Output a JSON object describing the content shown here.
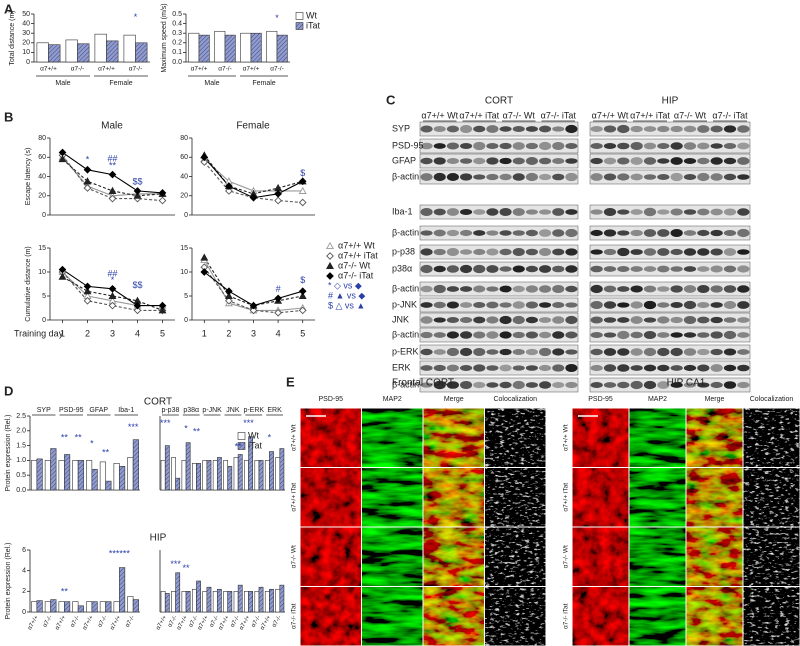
{
  "panel_labels": [
    "A",
    "B",
    "C",
    "D",
    "E"
  ],
  "chart_data": [
    {
      "type": "bar",
      "ylabel": "Total distance (m)",
      "categories": [
        "α7+/+",
        "α7-/-",
        "α7+/+",
        "α7-/-"
      ],
      "groups": [
        "Male",
        "Female"
      ],
      "group_position": "bottom",
      "series": [
        {
          "name": "Wt",
          "color": "#ffffff",
          "values": [
            20,
            23,
            29,
            28
          ]
        },
        {
          "name": "iTat",
          "color": "#8f9bd6",
          "hatch": true,
          "values": [
            18,
            19,
            22,
            20
          ]
        }
      ],
      "ylim": [
        0,
        50
      ],
      "yticks": [
        0,
        10,
        20,
        30,
        40,
        50
      ],
      "annotations": [
        "*"
      ],
      "annotation_color": "#2a3fa8"
    },
    {
      "type": "bar",
      "ylabel": "Maximum speed (m/s)",
      "categories": [
        "α7+/+",
        "α7-/-",
        "α7+/+",
        "α7-/-"
      ],
      "groups": [
        "Male",
        "Female"
      ],
      "group_position": "bottom",
      "series": [
        {
          "name": "Wt",
          "color": "#ffffff",
          "values": [
            0.3,
            0.32,
            0.3,
            0.32
          ]
        },
        {
          "name": "iTat",
          "color": "#8f9bd6",
          "hatch": true,
          "values": [
            0.28,
            0.28,
            0.3,
            0.28
          ]
        }
      ],
      "ylim": [
        0,
        0.5
      ],
      "yticks": [
        {
          "value": 0,
          "label": "0.0"
        },
        0.1,
        0.2,
        0.3,
        0.4,
        0.5
      ],
      "legend": true,
      "annotations": [
        "*"
      ],
      "annotation_color": "#2a3fa8"
    },
    {
      "type": "line",
      "title": "Male",
      "ylabel": "Escape latency (s)",
      "x": [
        1,
        2,
        3,
        4,
        5
      ],
      "xlim": [
        0.5,
        5.5
      ],
      "ylim": [
        0,
        80
      ],
      "yticks": [
        0,
        20,
        40,
        60,
        80
      ],
      "series": [
        {
          "name": "α7+/+ Wt",
          "color": "#9a9a9a",
          "marker": "triangle-open",
          "values": [
            60,
            30,
            20,
            22,
            22
          ]
        },
        {
          "name": "α7+/+ iTat",
          "color": "#555555",
          "marker": "diamond-open",
          "dash": true,
          "values": [
            62,
            28,
            17,
            17,
            15
          ]
        },
        {
          "name": "α7-/- Wt",
          "color": "#222222",
          "marker": "triangle",
          "dash": true,
          "values": [
            58,
            35,
            25,
            20,
            22
          ]
        },
        {
          "name": "α7-/- iTat",
          "color": "#000000",
          "marker": "diamond",
          "values": [
            65,
            47,
            42,
            25,
            23
          ]
        }
      ],
      "legend": true,
      "legend_notes": [
        "* ◇ vs ◆",
        "# ▲ vs ◆",
        "$ △ vs ▲"
      ],
      "annotations": [
        "*",
        "##",
        "**",
        "$$"
      ],
      "annotation_color": "#2a3fa8"
    },
    {
      "type": "line",
      "title": "Female",
      "x": [
        1,
        2,
        3,
        4,
        5
      ],
      "xlim": [
        0.5,
        5.5
      ],
      "ylim": [
        0,
        80
      ],
      "yticks": [
        0,
        20,
        40,
        60,
        80
      ],
      "series": [
        {
          "name": "α7+/+ Wt",
          "color": "#9a9a9a",
          "marker": "triangle-open",
          "values": [
            58,
            35,
            25,
            25,
            25
          ]
        },
        {
          "name": "α7+/+ iTat",
          "color": "#555555",
          "marker": "diamond-open",
          "dash": true,
          "values": [
            55,
            25,
            18,
            15,
            13
          ]
        },
        {
          "name": "α7-/- Wt",
          "color": "#222222",
          "marker": "triangle",
          "dash": true,
          "values": [
            62,
            30,
            22,
            28,
            35
          ]
        },
        {
          "name": "α7-/- iTat",
          "color": "#000000",
          "marker": "diamond",
          "values": [
            60,
            30,
            18,
            22,
            35
          ]
        }
      ],
      "annotations": [
        "$"
      ],
      "annotation_color": "#2a3fa8"
    },
    {
      "type": "line",
      "ylabel": "Cumulative distance (m)",
      "xlabel": "Training day",
      "x": [
        1,
        2,
        3,
        4,
        5
      ],
      "xlim": [
        0.5,
        5.5
      ],
      "xticks": [
        1,
        2,
        3,
        4,
        5
      ],
      "ylim": [
        0,
        15
      ],
      "yticks": [
        0,
        5,
        10,
        15
      ],
      "series": [
        {
          "name": "α7+/+ Wt",
          "color": "#9a9a9a",
          "marker": "triangle-open",
          "values": [
            10,
            5,
            4,
            3,
            3
          ]
        },
        {
          "name": "α7+/+ iTat",
          "color": "#555555",
          "marker": "diamond-open",
          "dash": true,
          "values": [
            10,
            4,
            3,
            2,
            2
          ]
        },
        {
          "name": "α7-/- Wt",
          "color": "#222222",
          "marker": "triangle",
          "dash": true,
          "values": [
            9,
            6,
            5,
            4,
            2
          ]
        },
        {
          "name": "α7-/- iTat",
          "color": "#000000",
          "marker": "diamond",
          "values": [
            10.5,
            7,
            6.5,
            3,
            3
          ]
        }
      ],
      "annotations": [
        "##",
        "*",
        "$$"
      ],
      "annotation_color": "#2a3fa8"
    },
    {
      "type": "line",
      "x": [
        1,
        2,
        3,
        4,
        5
      ],
      "xlim": [
        0.5,
        5.5
      ],
      "xticks": [
        1,
        2,
        3,
        4,
        5
      ],
      "ylim": [
        0,
        15
      ],
      "yticks": [
        0,
        5,
        10,
        15
      ],
      "series": [
        {
          "name": "α7+/+ Wt",
          "color": "#9a9a9a",
          "marker": "triangle-open",
          "values": [
            12.5,
            3.5,
            2,
            2,
            2.5
          ]
        },
        {
          "name": "α7+/+ iTat",
          "color": "#555555",
          "marker": "diamond-open",
          "dash": true,
          "values": [
            11,
            4,
            2,
            1.5,
            2
          ]
        },
        {
          "name": "α7-/- Wt",
          "color": "#222222",
          "marker": "triangle",
          "dash": true,
          "values": [
            13,
            5,
            3,
            4,
            5
          ]
        },
        {
          "name": "α7-/- iTat",
          "color": "#000000",
          "marker": "diamond",
          "values": [
            10,
            6,
            3,
            4.5,
            6
          ]
        }
      ],
      "annotations": [
        "#",
        "$"
      ],
      "annotation_color": "#2a3fa8"
    },
    {
      "type": "bar",
      "title": "CORT",
      "ylabel": "Protein expression (Rel.)",
      "categories": [
        null,
        null,
        null,
        null,
        null,
        null,
        null,
        null
      ],
      "groups": [
        "SYP",
        "PSD-95",
        "GFAP",
        "Iba-1"
      ],
      "group_position": "top",
      "series": [
        {
          "name": "Wt",
          "color": "#ffffff",
          "values": [
            1,
            1,
            1,
            1,
            1,
            0.95,
            0.9,
            1.1
          ]
        },
        {
          "name": "iTat",
          "color": "#8f9bd6",
          "hatch": true,
          "values": [
            1.05,
            1.4,
            1.2,
            1.0,
            0.7,
            0.3,
            0.8,
            1.7
          ]
        }
      ],
      "ylim": [
        0,
        2.5
      ],
      "yticks": [
        {
          "value": 0,
          "label": "0.0"
        },
        0.5,
        {
          "value": 1,
          "label": "1.0"
        },
        1.5,
        {
          "value": 2,
          "label": "2.0"
        },
        2.5
      ],
      "annotations": [
        "**",
        "**",
        "*",
        "**",
        "***"
      ],
      "annotation_color": "#2a3fa8"
    },
    {
      "type": "bar",
      "categories": [
        null,
        null,
        null,
        null,
        null,
        null,
        null,
        null,
        null,
        null,
        null,
        null
      ],
      "groups": [
        "p-p38",
        "p38α",
        "p-JNK",
        "JNK",
        "p-ERK",
        "ERK"
      ],
      "group_position": "top",
      "series": [
        {
          "name": "Wt",
          "color": "#ffffff",
          "values": [
            1,
            1.1,
            1,
            0.9,
            1,
            1,
            1,
            1.1,
            1,
            1,
            1,
            1.1
          ]
        },
        {
          "name": "iTat",
          "color": "#8f9bd6",
          "hatch": true,
          "values": [
            1.5,
            0.4,
            1.6,
            0.9,
            1.0,
            1.1,
            0.8,
            1.2,
            1.8,
            1.0,
            1.3,
            1.4
          ]
        }
      ],
      "ylim": [
        0,
        2.5
      ],
      "legend": true,
      "annotations": [
        "***",
        "*",
        "**",
        "**",
        "***",
        "*"
      ],
      "annotation_color": "#2a3fa8"
    },
    {
      "type": "bar",
      "title": "HIP",
      "ylabel": "Protein expression (Rel.)",
      "categories": [
        "α7+/+",
        "α7-/-",
        "α7+/+",
        "α7-/-",
        "α7+/+",
        "α7-/-",
        "α7+/+",
        "α7-/-"
      ],
      "series": [
        {
          "name": "Wt",
          "color": "#ffffff",
          "values": [
            1,
            1,
            1,
            1,
            1,
            1,
            1,
            1.5
          ]
        },
        {
          "name": "iTat",
          "color": "#8f9bd6",
          "hatch": true,
          "values": [
            1.1,
            1.2,
            1.0,
            0.6,
            1.0,
            1.0,
            4.3,
            1.2
          ]
        }
      ],
      "ylim": [
        0,
        6
      ],
      "yticks": [
        0,
        2,
        4,
        6
      ],
      "annotations": [
        "**",
        "******"
      ],
      "annotation_color": "#2a3fa8"
    },
    {
      "type": "bar",
      "categories": [
        "α7+/+",
        "α7-/-",
        "α7+/+",
        "α7-/-",
        "α7+/+",
        "α7-/-",
        "α7+/+",
        "α7-/-",
        "α7+/+",
        "α7-/-",
        "α7+/+",
        "α7-/-"
      ],
      "series": [
        {
          "name": "Wt",
          "color": "#ffffff",
          "values": [
            1,
            1,
            1,
            1.1,
            1,
            1,
            1,
            1,
            1,
            1,
            1,
            1.1
          ]
        },
        {
          "name": "iTat",
          "color": "#8f9bd6",
          "hatch": true,
          "values": [
            0.9,
            1.9,
            1.0,
            1.5,
            1.2,
            1.1,
            1.0,
            1.3,
            1.0,
            1.2,
            1.1,
            1.3
          ]
        }
      ],
      "ylim": [
        0,
        3
      ],
      "annotations": [
        "***",
        "**"
      ],
      "annotation_color": "#2a3fa8"
    }
  ],
  "blots": {
    "regions": [
      "CORT",
      "HIP"
    ],
    "groups": [
      "α7+/+ Wt",
      "α7+/+ iTat",
      "α7-/- Wt",
      "α7-/- iTat"
    ],
    "rows": [
      "SYP",
      "PSD-95",
      "GFAP",
      "β-actin",
      "Iba-1",
      "β-actin",
      "p-p38",
      "p38α",
      "β-actin",
      "p-JNK",
      "JNK",
      "β-actin",
      "p-ERK",
      "ERK",
      "β-actin"
    ]
  },
  "micrographs": {
    "regions": [
      "Frontal CORT",
      "HIP CA1"
    ],
    "columns": [
      "PSD-95",
      "MAP2",
      "Merge",
      "Colocalization"
    ],
    "rows": [
      "α7+/+ Wt",
      "α7+/+ iTat",
      "α7-/- Wt",
      "α7-/- iTat"
    ]
  }
}
